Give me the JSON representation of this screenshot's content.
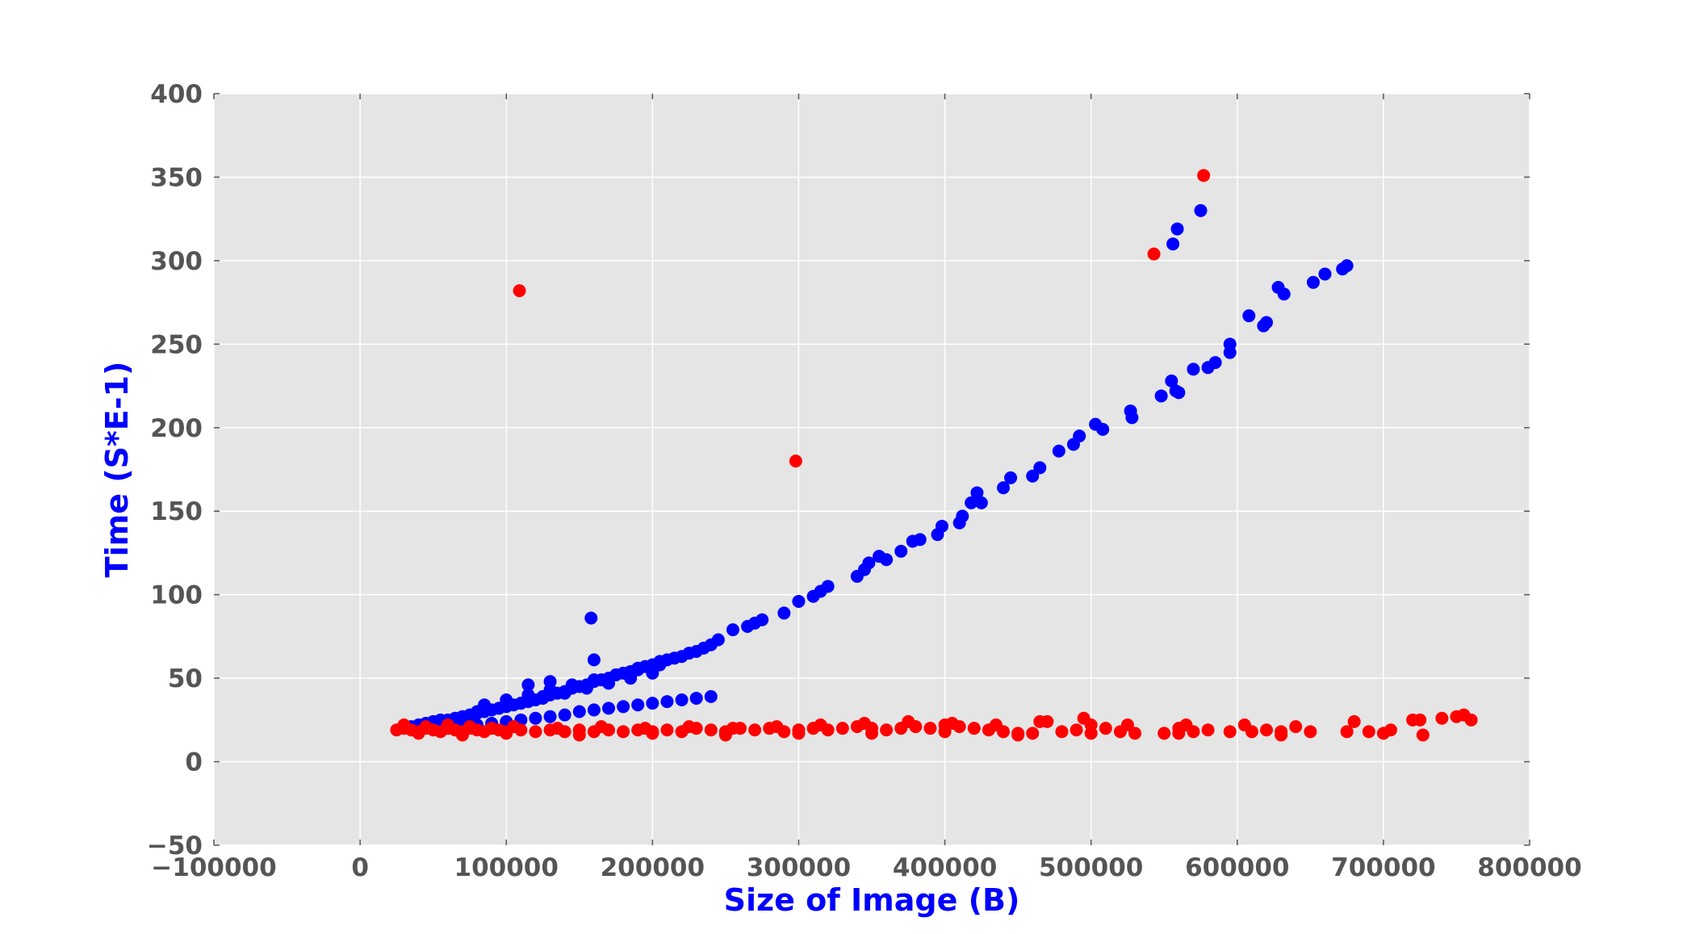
{
  "chart_data": {
    "type": "scatter",
    "title": "",
    "xlabel": "Size of Image (B)",
    "ylabel": "Time (S*E-1)",
    "xlim": [
      -100000,
      800000
    ],
    "ylim": [
      -50,
      400
    ],
    "xticks": [
      -100000,
      0,
      100000,
      200000,
      300000,
      400000,
      500000,
      600000,
      700000,
      800000
    ],
    "xtick_labels": [
      "−100000",
      "0",
      "100000",
      "200000",
      "300000",
      "400000",
      "500000",
      "600000",
      "700000",
      "800000"
    ],
    "yticks": [
      -50,
      0,
      50,
      100,
      150,
      200,
      250,
      300,
      350,
      400
    ],
    "ytick_labels": [
      "−50",
      "0",
      "50",
      "100",
      "150",
      "200",
      "250",
      "300",
      "350",
      "400"
    ],
    "grid": true,
    "legend": "none",
    "colors": {
      "plot_background": "#e5e5e5",
      "grid": "#ffffff",
      "axis_label": "#0000ff",
      "tick_label": "#555555"
    },
    "series": [
      {
        "color": "#0000ff",
        "x": [
          30000,
          35000,
          40000,
          45000,
          50000,
          55000,
          60000,
          65000,
          70000,
          75000,
          80000,
          85000,
          90000,
          95000,
          100000,
          105000,
          110000,
          115000,
          120000,
          125000,
          130000,
          135000,
          140000,
          145000,
          150000,
          155000,
          160000,
          165000,
          170000,
          175000,
          180000,
          185000,
          190000,
          195000,
          200000,
          205000,
          210000,
          215000,
          220000,
          225000,
          230000,
          235000,
          240000,
          60000,
          70000,
          80000,
          90000,
          100000,
          110000,
          120000,
          130000,
          140000,
          150000,
          160000,
          170000,
          180000,
          190000,
          200000,
          210000,
          220000,
          230000,
          240000,
          80000,
          95000,
          110000,
          125000,
          140000,
          155000,
          170000,
          185000,
          200000,
          85000,
          100000,
          115000,
          130000,
          145000,
          160000,
          175000,
          190000,
          205000,
          115000,
          130000,
          160000,
          245000,
          255000,
          265000,
          270000,
          275000,
          290000,
          300000,
          310000,
          315000,
          320000,
          340000,
          345000,
          348000,
          355000,
          360000,
          370000,
          378000,
          383000,
          395000,
          398000,
          410000,
          412000,
          418000,
          422000,
          425000,
          440000,
          445000,
          460000,
          465000,
          478000,
          488000,
          492000,
          503000,
          508000,
          527000,
          528000,
          548000,
          555000,
          558000,
          560000,
          570000,
          580000,
          585000,
          595000,
          595000,
          608000,
          618000,
          620000,
          628000,
          632000,
          652000,
          660000,
          672000,
          675000,
          556000,
          559000,
          575000
        ],
        "y": [
          20,
          21,
          22,
          23,
          24,
          25,
          25,
          26,
          27,
          28,
          29,
          30,
          31,
          32,
          33,
          34,
          35,
          36,
          37,
          39,
          40,
          41,
          42,
          44,
          45,
          46,
          48,
          49,
          50,
          52,
          53,
          54,
          56,
          57,
          58,
          60,
          61,
          62,
          63,
          65,
          66,
          68,
          70,
          20,
          21,
          22,
          23,
          24,
          25,
          26,
          27,
          28,
          30,
          31,
          32,
          33,
          34,
          35,
          36,
          37,
          38,
          39,
          30,
          32,
          35,
          38,
          41,
          44,
          47,
          50,
          53,
          34,
          37,
          40,
          43,
          46,
          49,
          52,
          55,
          58,
          46,
          48,
          61,
          73,
          79,
          81,
          83,
          85,
          89,
          96,
          99,
          102,
          105,
          111,
          115,
          119,
          123,
          121,
          126,
          132,
          133,
          136,
          141,
          143,
          147,
          155,
          161,
          155,
          164,
          170,
          171,
          176,
          186,
          190,
          195,
          202,
          199,
          210,
          206,
          219,
          228,
          222,
          221,
          235,
          236,
          239,
          245,
          250,
          267,
          261,
          263,
          284,
          280,
          287,
          292,
          295,
          297,
          310,
          319,
          330
        ],
        "extra_points": [
          [
            158000,
            86
          ]
        ]
      },
      {
        "color": "#ff0000",
        "x": [
          25000,
          30000,
          35000,
          40000,
          45000,
          50000,
          55000,
          60000,
          65000,
          70000,
          75000,
          80000,
          85000,
          90000,
          95000,
          100000,
          110000,
          120000,
          130000,
          140000,
          150000,
          160000,
          170000,
          180000,
          190000,
          200000,
          210000,
          220000,
          230000,
          240000,
          250000,
          260000,
          270000,
          280000,
          290000,
          300000,
          310000,
          320000,
          330000,
          340000,
          350000,
          360000,
          370000,
          380000,
          390000,
          400000,
          410000,
          420000,
          430000,
          440000,
          450000,
          460000,
          470000,
          480000,
          490000,
          500000,
          510000,
          520000,
          530000,
          550000,
          560000,
          570000,
          580000,
          595000,
          610000,
          620000,
          630000,
          650000,
          675000,
          690000,
          705000,
          725000,
          740000,
          750000,
          760000,
          30000,
          45000,
          60000,
          75000,
          90000,
          105000,
          135000,
          165000,
          195000,
          225000,
          255000,
          285000,
          315000,
          345000,
          375000,
          405000,
          435000,
          465000,
          495000,
          525000,
          565000,
          605000,
          640000,
          680000,
          720000,
          755000,
          40000,
          70000,
          100000,
          150000,
          200000,
          250000,
          300000,
          350000,
          400000,
          450000,
          500000,
          560000,
          630000,
          700000,
          727000,
          109000,
          298000,
          543000,
          577000
        ],
        "y": [
          19,
          20,
          19,
          18,
          20,
          19,
          18,
          20,
          19,
          18,
          20,
          19,
          18,
          20,
          19,
          18,
          19,
          18,
          19,
          18,
          19,
          18,
          19,
          18,
          19,
          18,
          19,
          18,
          20,
          19,
          18,
          20,
          19,
          20,
          18,
          19,
          20,
          19,
          20,
          21,
          20,
          19,
          20,
          21,
          20,
          22,
          21,
          20,
          19,
          18,
          17,
          17,
          24,
          18,
          19,
          22,
          20,
          18,
          17,
          17,
          20,
          18,
          19,
          18,
          18,
          19,
          18,
          18,
          18,
          18,
          19,
          25,
          26,
          27,
          25,
          22,
          21,
          22,
          21,
          20,
          21,
          20,
          21,
          20,
          21,
          20,
          21,
          22,
          23,
          24,
          23,
          22,
          24,
          26,
          22,
          22,
          22,
          21,
          24,
          25,
          28,
          17,
          16,
          17,
          16,
          17,
          16,
          17,
          17,
          18,
          16,
          17,
          17,
          16,
          17,
          16,
          282,
          180,
          304,
          351
        ]
      }
    ]
  }
}
